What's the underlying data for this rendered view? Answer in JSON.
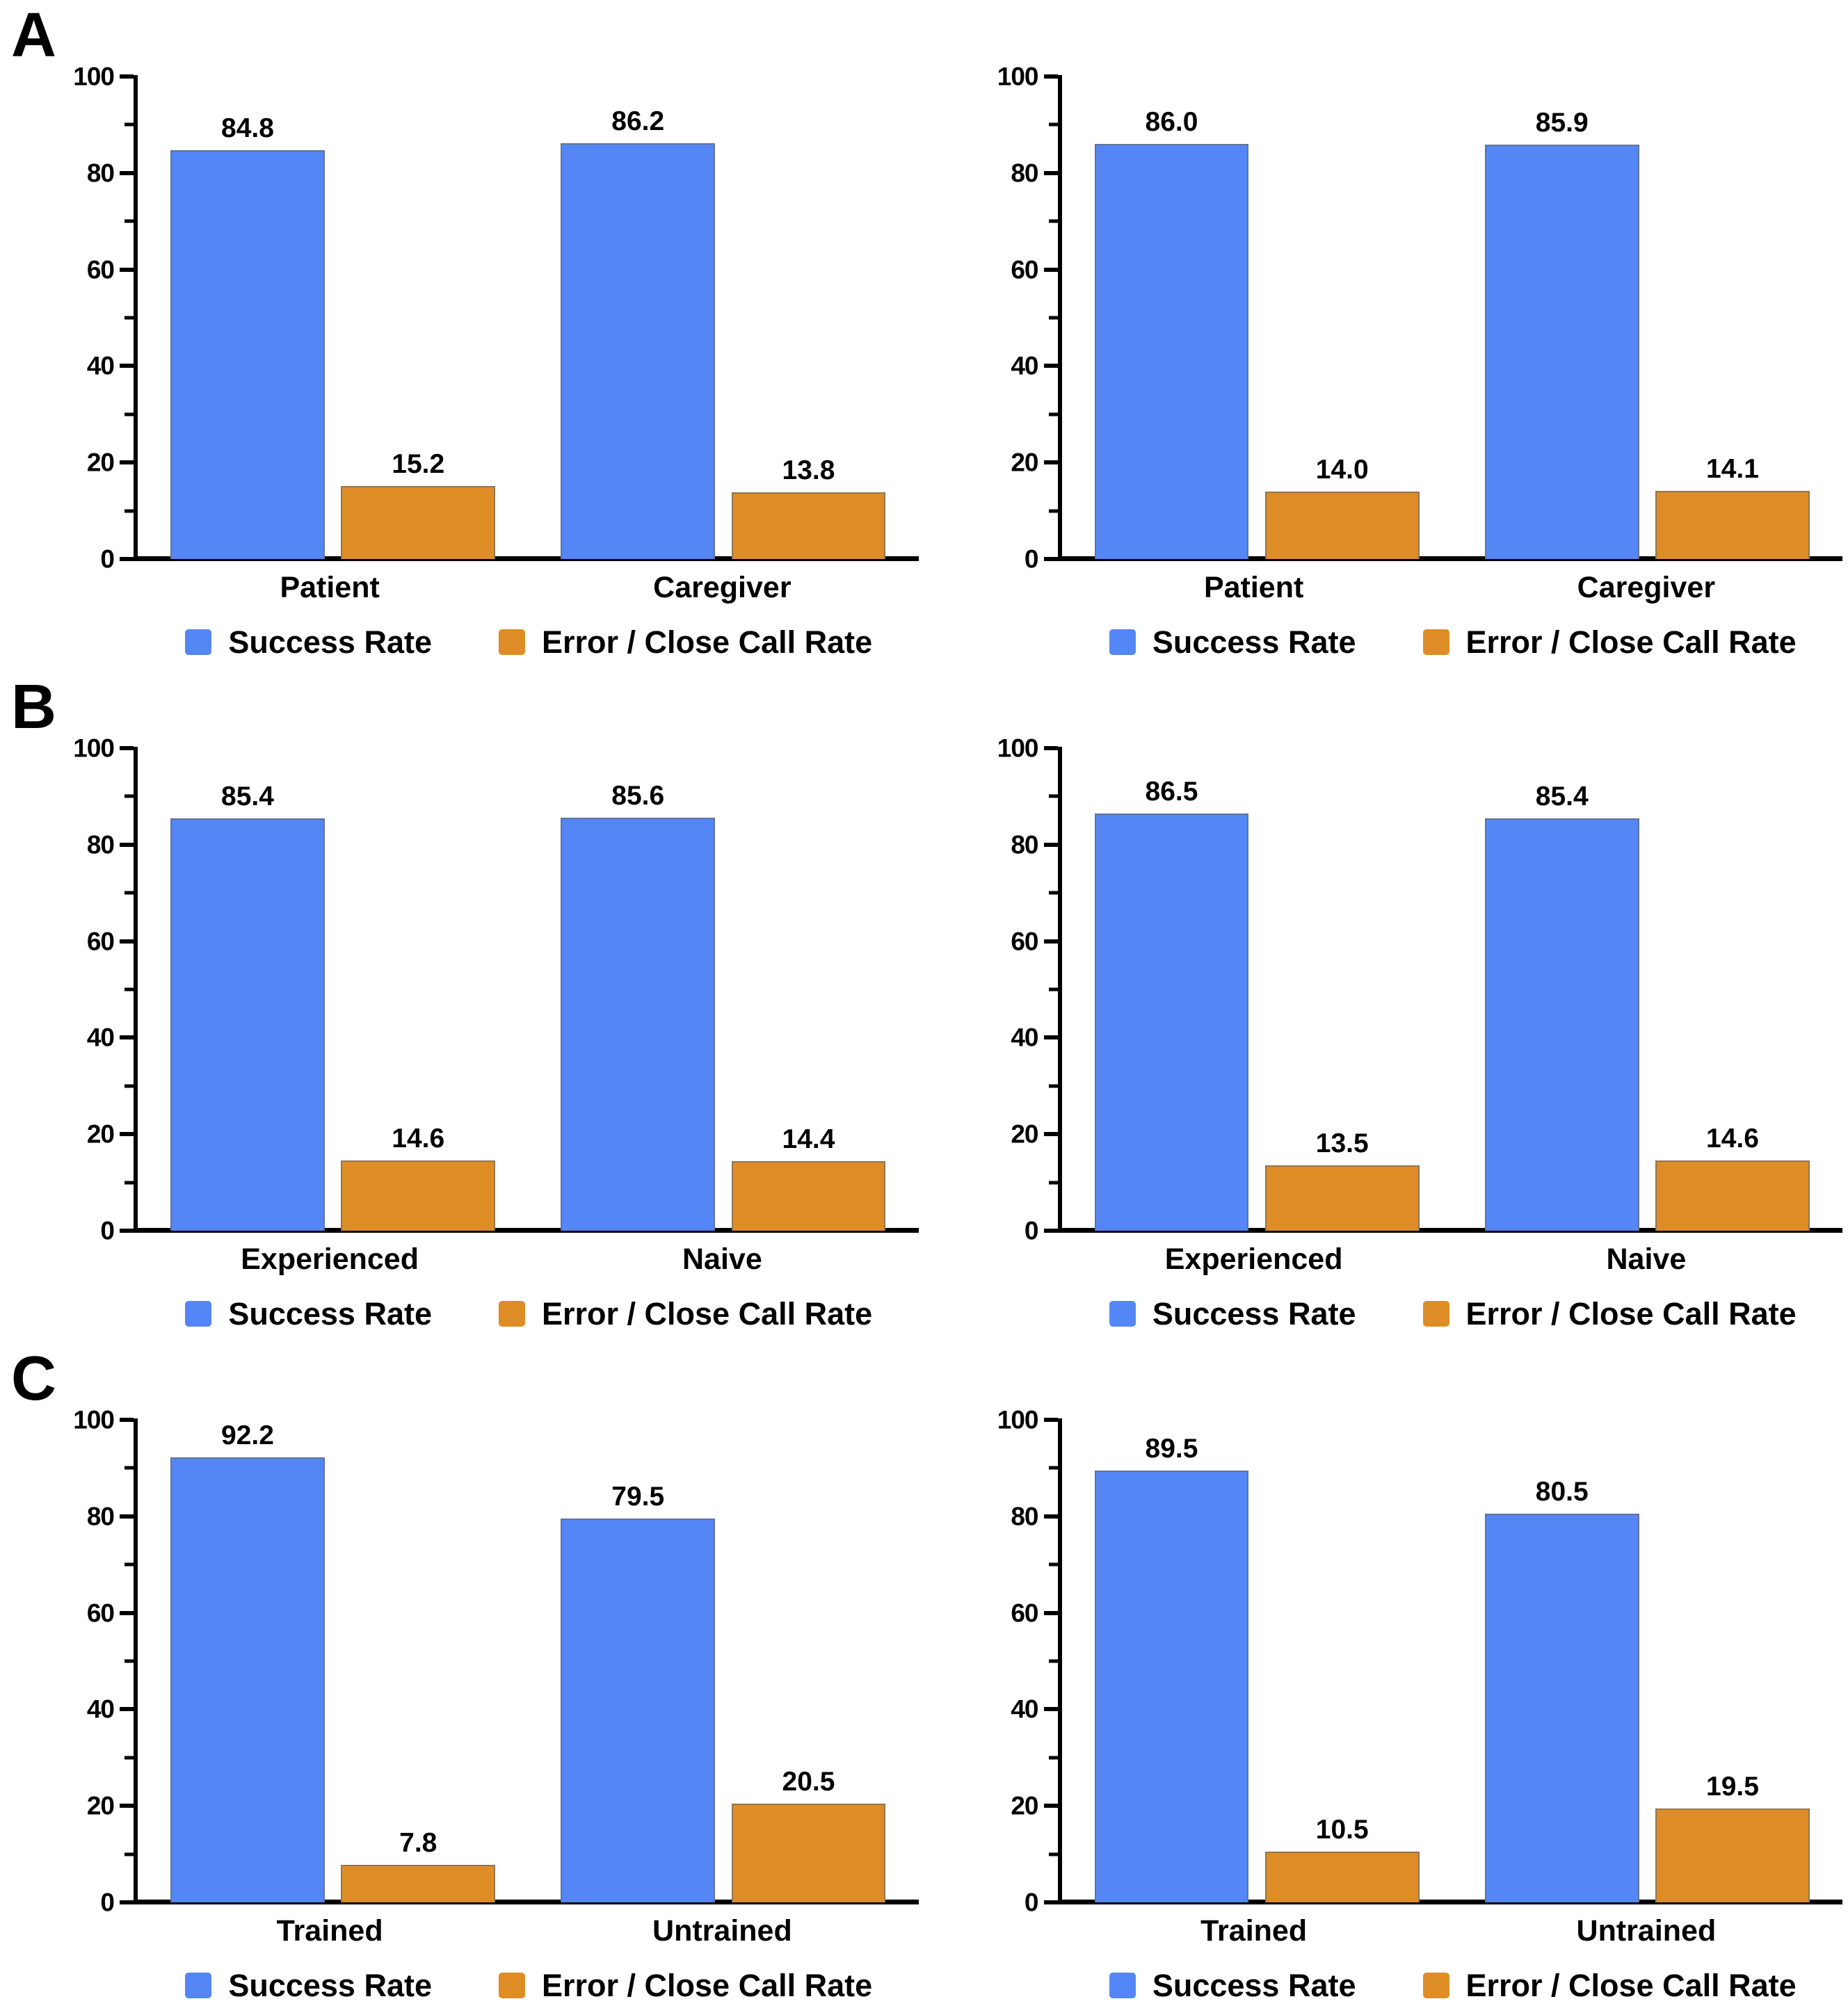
{
  "figure": {
    "panels": [
      {
        "label": "A",
        "chart_ids": [
          0,
          1
        ]
      },
      {
        "label": "B",
        "chart_ids": [
          2,
          3
        ]
      },
      {
        "label": "C",
        "chart_ids": [
          4,
          5
        ]
      }
    ]
  },
  "colors": {
    "success": "#5586F5",
    "error": "#DE8D26",
    "axis": "#000000",
    "background": "#FFFFFF"
  },
  "legend": {
    "items": [
      {
        "name": "Success Rate",
        "color": "#5586F5"
      },
      {
        "name": "Error / Close Call Rate",
        "color": "#DE8D26"
      }
    ]
  },
  "axis": {
    "ylim": [
      0,
      100
    ],
    "major_ticks": [
      0,
      20,
      40,
      60,
      80,
      100
    ],
    "minor_ticks": [
      10,
      30,
      50,
      70,
      90
    ]
  },
  "chart_data": [
    {
      "type": "bar",
      "panel": "A",
      "position": "left",
      "categories": [
        "Patient",
        "Caregiver"
      ],
      "series": [
        {
          "name": "Success Rate",
          "values": [
            84.8,
            86.2
          ],
          "value_labels": [
            "84.8",
            "86.2"
          ]
        },
        {
          "name": "Error / Close Call Rate",
          "values": [
            15.2,
            13.8
          ],
          "value_labels": [
            "15.2",
            "13.8"
          ]
        }
      ],
      "ylim": [
        0,
        100
      ],
      "grid": false,
      "legend_position": "bottom"
    },
    {
      "type": "bar",
      "panel": "A",
      "position": "right",
      "categories": [
        "Patient",
        "Caregiver"
      ],
      "series": [
        {
          "name": "Success Rate",
          "values": [
            86.0,
            85.9
          ],
          "value_labels": [
            "86.0",
            "85.9"
          ]
        },
        {
          "name": "Error / Close Call Rate",
          "values": [
            14.0,
            14.1
          ],
          "value_labels": [
            "14.0",
            "14.1"
          ]
        }
      ],
      "ylim": [
        0,
        100
      ],
      "grid": false,
      "legend_position": "bottom"
    },
    {
      "type": "bar",
      "panel": "B",
      "position": "left",
      "categories": [
        "Experienced",
        "Naive"
      ],
      "series": [
        {
          "name": "Success Rate",
          "values": [
            85.4,
            85.6
          ],
          "value_labels": [
            "85.4",
            "85.6"
          ]
        },
        {
          "name": "Error / Close Call Rate",
          "values": [
            14.6,
            14.4
          ],
          "value_labels": [
            "14.6",
            "14.4"
          ]
        }
      ],
      "ylim": [
        0,
        100
      ],
      "grid": false,
      "legend_position": "bottom"
    },
    {
      "type": "bar",
      "panel": "B",
      "position": "right",
      "categories": [
        "Experienced",
        "Naive"
      ],
      "series": [
        {
          "name": "Success Rate",
          "values": [
            86.5,
            85.4
          ],
          "value_labels": [
            "86.5",
            "85.4"
          ]
        },
        {
          "name": "Error / Close Call Rate",
          "values": [
            13.5,
            14.6
          ],
          "value_labels": [
            "13.5",
            "14.6"
          ]
        }
      ],
      "ylim": [
        0,
        100
      ],
      "grid": false,
      "legend_position": "bottom"
    },
    {
      "type": "bar",
      "panel": "C",
      "position": "left",
      "categories": [
        "Trained",
        "Untrained"
      ],
      "series": [
        {
          "name": "Success Rate",
          "values": [
            92.2,
            79.5
          ],
          "value_labels": [
            "92.2",
            "79.5"
          ]
        },
        {
          "name": "Error / Close Call Rate",
          "values": [
            7.8,
            20.5
          ],
          "value_labels": [
            "7.8",
            "20.5"
          ]
        }
      ],
      "ylim": [
        0,
        100
      ],
      "grid": false,
      "legend_position": "bottom"
    },
    {
      "type": "bar",
      "panel": "C",
      "position": "right",
      "categories": [
        "Trained",
        "Untrained"
      ],
      "series": [
        {
          "name": "Success Rate",
          "values": [
            89.5,
            80.5
          ],
          "value_labels": [
            "89.5",
            "80.5"
          ]
        },
        {
          "name": "Error / Close Call Rate",
          "values": [
            10.5,
            19.5
          ],
          "value_labels": [
            "10.5",
            "19.5"
          ]
        }
      ],
      "ylim": [
        0,
        100
      ],
      "grid": false,
      "legend_position": "bottom"
    }
  ]
}
